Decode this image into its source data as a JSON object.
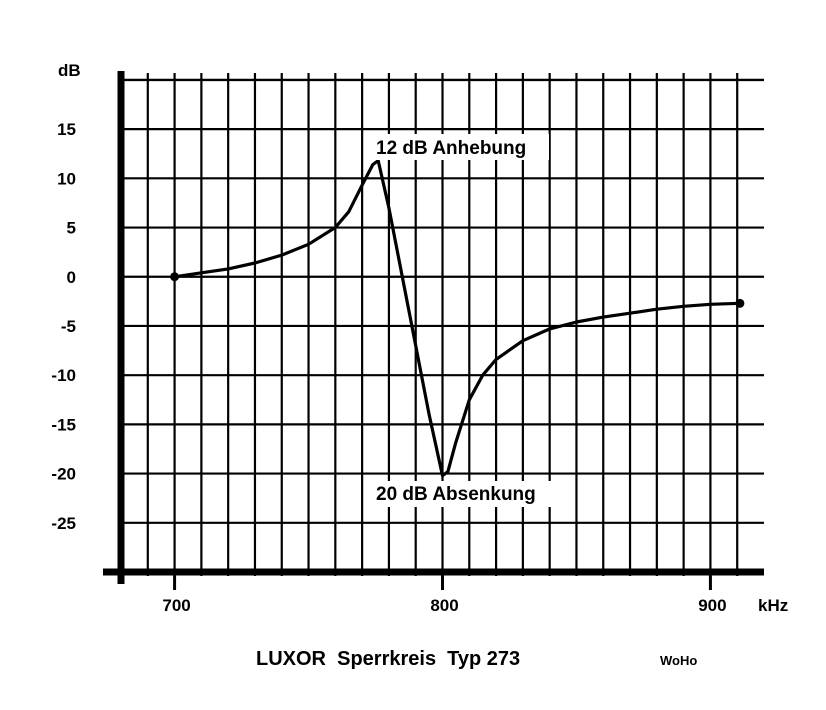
{
  "chart_data": {
    "type": "line",
    "title": "LUXOR  Sperrkreis  Typ 273",
    "signature": "WoHo",
    "ylabel": "dB",
    "xlabel": "kHz",
    "xlim": [
      680,
      920
    ],
    "ylim": [
      -30,
      20.5
    ],
    "x_ticks": [
      700,
      800,
      900
    ],
    "x_tick_labels": [
      "700",
      "800",
      "900"
    ],
    "y_ticks": [
      15,
      10,
      5,
      0,
      -5,
      -10,
      -15,
      -20,
      -25
    ],
    "y_tick_labels": [
      "15",
      "10",
      "5",
      "0",
      "-5",
      "-10",
      "-15",
      "-20",
      "-25"
    ],
    "grid": true,
    "annotations": [
      {
        "text": "12 dB Anhebung",
        "x": 776,
        "y": 12
      },
      {
        "text": "20 dB Absenkung",
        "x": 801,
        "y": -20
      }
    ],
    "series": [
      {
        "x": [
          700,
          710,
          720,
          730,
          740,
          750,
          760,
          765,
          770,
          774,
          776,
          780,
          785,
          790,
          795,
          800,
          802,
          805,
          810,
          815,
          820,
          830,
          840,
          850,
          860,
          870,
          880,
          890,
          900,
          911
        ],
        "y": [
          0,
          0.4,
          0.8,
          1.4,
          2.2,
          3.3,
          5.0,
          6.6,
          9.3,
          11.4,
          11.8,
          7.0,
          0.0,
          -7.0,
          -14.0,
          -20.2,
          -19.8,
          -16.8,
          -12.5,
          -10.0,
          -8.4,
          -6.5,
          -5.3,
          -4.6,
          -4.1,
          -3.7,
          -3.3,
          -3.0,
          -2.8,
          -2.7
        ]
      }
    ]
  }
}
